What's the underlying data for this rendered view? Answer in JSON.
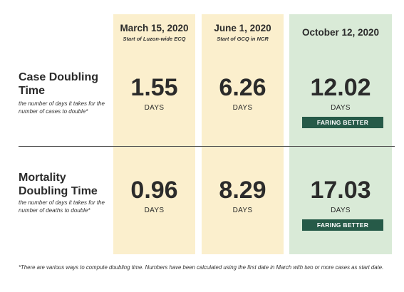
{
  "columns": [
    {
      "date": "March 15, 2020",
      "subtitle": "Start of Luzon-wide ECQ"
    },
    {
      "date": "June 1, 2020",
      "subtitle": "Start of GCQ in NCR"
    },
    {
      "date": "October 12, 2020",
      "subtitle": ""
    }
  ],
  "rows": [
    {
      "title": "Case Doubling Time",
      "description": "the number of days it takes for the number of cases to double*",
      "values": [
        "1.55",
        "6.26",
        "12.02"
      ],
      "unit": "DAYS",
      "badge": "FARING BETTER"
    },
    {
      "title": "Mortality Doubling Time",
      "description": "the number of days it takes for the number of deaths to double*",
      "values": [
        "0.96",
        "8.29",
        "17.03"
      ],
      "unit": "DAYS",
      "badge": "FARING BETTER"
    }
  ],
  "footnote": "*There are various ways to compute doubling time. Numbers have been calculated using the first date in March with two or more cases as start date.",
  "colors": {
    "ecq_column_bg": "#fbefcd",
    "latest_column_bg": "#d9ead7",
    "badge_bg": "#265a48"
  }
}
